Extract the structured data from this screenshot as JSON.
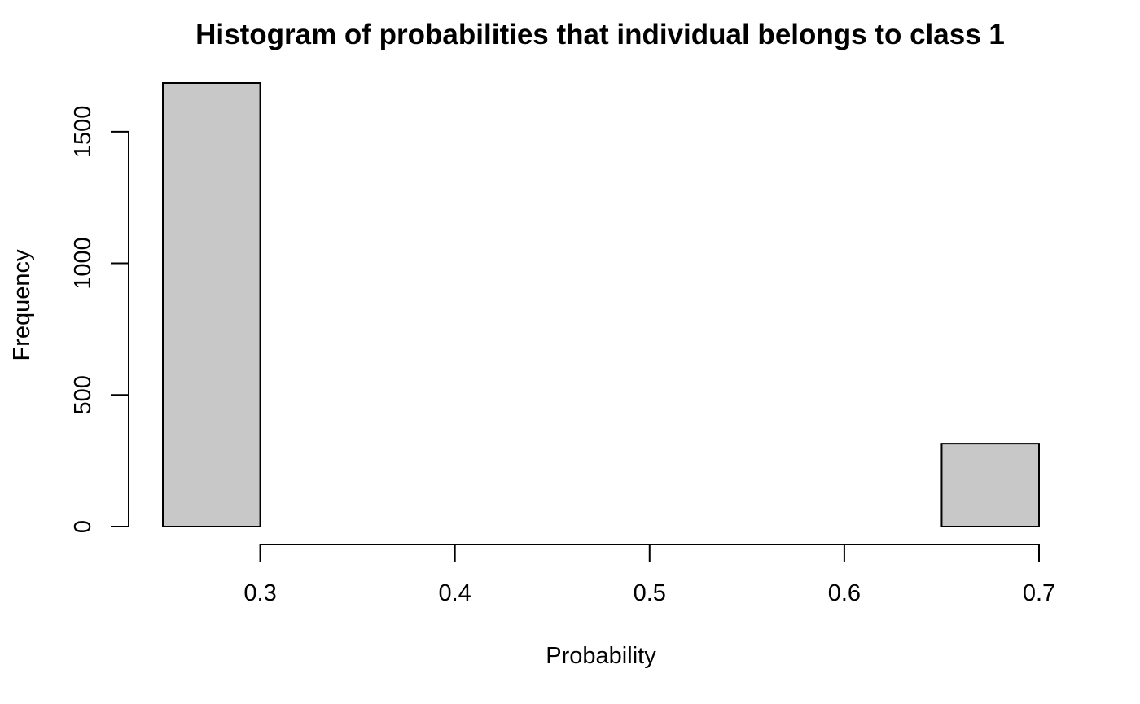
{
  "chart_data": {
    "type": "bar",
    "subtype": "histogram",
    "title": "Histogram of probabilities that individual belongs to class 1",
    "xlabel": "Probability",
    "ylabel": "Frequency",
    "bins": [
      {
        "start": 0.25,
        "end": 0.3,
        "count": 1685
      },
      {
        "start": 0.3,
        "end": 0.35,
        "count": 0
      },
      {
        "start": 0.35,
        "end": 0.4,
        "count": 0
      },
      {
        "start": 0.4,
        "end": 0.45,
        "count": 0
      },
      {
        "start": 0.45,
        "end": 0.5,
        "count": 0
      },
      {
        "start": 0.5,
        "end": 0.55,
        "count": 0
      },
      {
        "start": 0.55,
        "end": 0.6,
        "count": 0
      },
      {
        "start": 0.6,
        "end": 0.65,
        "count": 0
      },
      {
        "start": 0.65,
        "end": 0.7,
        "count": 315
      }
    ],
    "xlim": [
      0.25,
      0.7
    ],
    "ylim": [
      0,
      1685
    ],
    "xticks": [
      {
        "value": 0.3,
        "label": "0.3"
      },
      {
        "value": 0.4,
        "label": "0.4"
      },
      {
        "value": 0.5,
        "label": "0.5"
      },
      {
        "value": 0.6,
        "label": "0.6"
      },
      {
        "value": 0.7,
        "label": "0.7"
      }
    ],
    "yticks": [
      {
        "value": 0,
        "label": "0"
      },
      {
        "value": 500,
        "label": "500"
      },
      {
        "value": 1000,
        "label": "1000"
      },
      {
        "value": 1500,
        "label": "1500"
      }
    ],
    "grid": false,
    "legend": "none",
    "colors": {
      "bar_fill": "#c8c8c8",
      "bar_stroke": "#000000",
      "axis": "#000000",
      "background": "#ffffff"
    }
  }
}
